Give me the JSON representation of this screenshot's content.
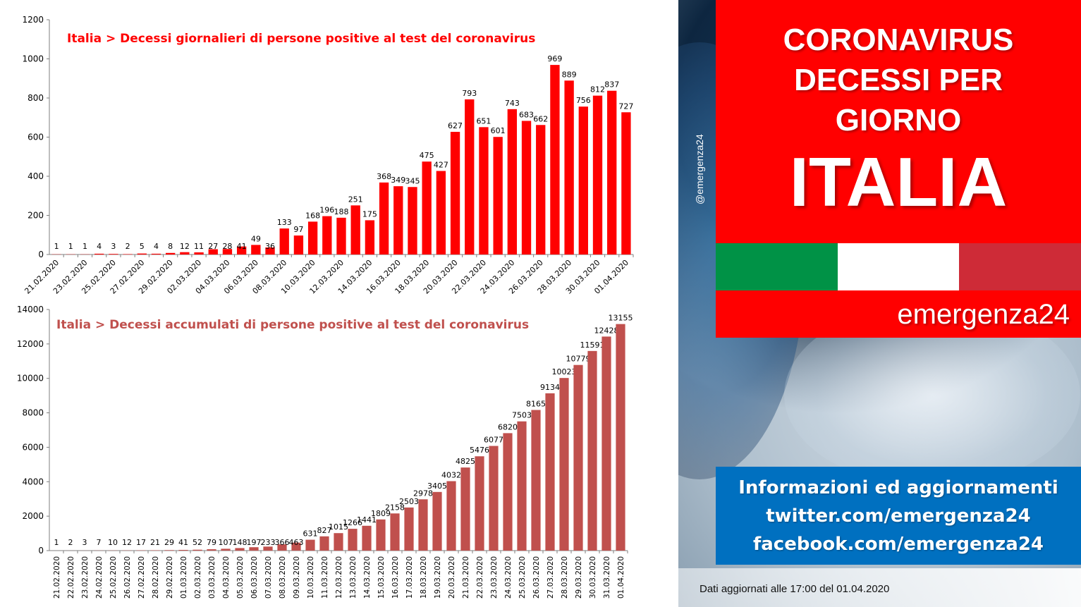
{
  "chart_data": [
    {
      "type": "bar",
      "title": "Italia > Decessi giornalieri di persone positive al test del coronavirus",
      "color": "#ff0000",
      "ylim": [
        0,
        1200
      ],
      "yticks": [
        0,
        200,
        400,
        600,
        800,
        1000,
        1200
      ],
      "categories": [
        "21.02.2020",
        "22.02.2020",
        "23.02.2020",
        "24.02.2020",
        "25.02.2020",
        "26.02.2020",
        "27.02.2020",
        "28.02.2020",
        "29.02.2020",
        "01.03.2020",
        "02.03.2020",
        "03.03.2020",
        "04.03.2020",
        "05.03.2020",
        "06.03.2020",
        "07.03.2020",
        "08.03.2020",
        "09.03.2020",
        "10.03.2020",
        "11.03.2020",
        "12.03.2020",
        "13.03.2020",
        "14.03.2020",
        "15.03.2020",
        "16.03.2020",
        "17.03.2020",
        "18.03.2020",
        "19.03.2020",
        "20.03.2020",
        "21.03.2020",
        "22.03.2020",
        "23.03.2020",
        "24.03.2020",
        "25.03.2020",
        "26.03.2020",
        "27.03.2020",
        "28.03.2020",
        "29.03.2020",
        "30.03.2020",
        "31.03.2020",
        "01.04.2020"
      ],
      "xticks": [
        "21.02.2020",
        "23.02.2020",
        "25.02.2020",
        "27.02.2020",
        "29.02.2020",
        "02.03.2020",
        "04.03.2020",
        "06.03.2020",
        "08.03.2020",
        "10.03.2020",
        "12.03.2020",
        "14.03.2020",
        "16.03.2020",
        "18.03.2020",
        "20.03.2020",
        "22.03.2020",
        "24.03.2020",
        "26.03.2020",
        "28.03.2020",
        "30.03.2020",
        "01.04.2020"
      ],
      "values": [
        1,
        1,
        1,
        4,
        3,
        2,
        5,
        4,
        8,
        12,
        11,
        27,
        28,
        41,
        49,
        36,
        133,
        97,
        168,
        196,
        188,
        251,
        175,
        368,
        349,
        345,
        475,
        427,
        627,
        793,
        651,
        601,
        743,
        683,
        662,
        969,
        889,
        756,
        812,
        837,
        727
      ],
      "grid": false
    },
    {
      "type": "bar",
      "title": "Italia > Decessi accumulati di persone positive al test del coronavirus",
      "color": "#c0504d",
      "ylim": [
        0,
        14000
      ],
      "yticks": [
        0,
        2000,
        4000,
        6000,
        8000,
        10000,
        12000,
        14000
      ],
      "categories": [
        "21.02.2020",
        "22.02.2020",
        "23.02.2020",
        "24.02.2020",
        "25.02.2020",
        "26.02.2020",
        "27.02.2020",
        "28.02.2020",
        "29.02.2020",
        "01.03.2020",
        "02.03.2020",
        "03.03.2020",
        "04.03.2020",
        "05.03.2020",
        "06.03.2020",
        "07.03.2020",
        "08.03.2020",
        "09.03.2020",
        "10.03.2020",
        "11.03.2020",
        "12.03.2020",
        "13.03.2020",
        "14.03.2020",
        "15.03.2020",
        "16.03.2020",
        "17.03.2020",
        "18.03.2020",
        "19.03.2020",
        "20.03.2020",
        "21.03.2020",
        "22.03.2020",
        "23.03.2020",
        "24.03.2020",
        "25.03.2020",
        "26.03.2020",
        "27.03.2020",
        "28.03.2020",
        "29.03.2020",
        "30.03.2020",
        "31.03.2020",
        "01.04.2020"
      ],
      "xticks": [
        "21.02.2020",
        "22.02.2020",
        "23.02.2020",
        "24.02.2020",
        "25.02.2020",
        "26.02.2020",
        "27.02.2020",
        "28.02.2020",
        "29.02.2020",
        "01.03.2020",
        "02.03.2020",
        "03.03.2020",
        "04.03.2020",
        "05.03.2020",
        "06.03.2020",
        "07.03.2020",
        "08.03.2020",
        "09.03.2020",
        "10.03.2020",
        "11.03.2020",
        "12.03.2020",
        "13.03.2020",
        "14.03.2020",
        "15.03.2020",
        "16.03.2020",
        "17.03.2020",
        "18.03.2020",
        "19.03.2020",
        "20.03.2020",
        "21.03.2020",
        "22.03.2020",
        "23.03.2020",
        "24.03.2020",
        "25.03.2020",
        "26.03.2020",
        "27.03.2020",
        "28.03.2020",
        "29.03.2020",
        "30.03.2020",
        "31.03.2020",
        "01.04.2020"
      ],
      "values": [
        1,
        2,
        3,
        7,
        10,
        12,
        17,
        21,
        29,
        41,
        52,
        79,
        107,
        148,
        197,
        233,
        366,
        463,
        631,
        827,
        1015,
        1266,
        1441,
        1809,
        2158,
        2503,
        2978,
        3405,
        4032,
        4825,
        5476,
        6077,
        6820,
        7503,
        8165,
        9134,
        10023,
        10779,
        11591,
        12428,
        13155
      ],
      "grid": false
    }
  ],
  "panel": {
    "title_lines": [
      "CORONAVIRUS",
      "DECESSI PER",
      "GIORNO"
    ],
    "title_main": "ITALIA",
    "brand": "emergenza24",
    "handle": "@emergenza24",
    "info_lines": [
      "Informazioni ed aggiornamenti",
      "twitter.com/emergenza24",
      "facebook.com/emergenza24"
    ],
    "updated": "Dati aggiornati alle 17:00 del 01.04.2020",
    "colors": {
      "red_box": "#ff0000",
      "info_box": "#0070c0",
      "flag_green": "#009246",
      "flag_white": "#ffffff",
      "flag_red": "#ce2b37"
    }
  }
}
